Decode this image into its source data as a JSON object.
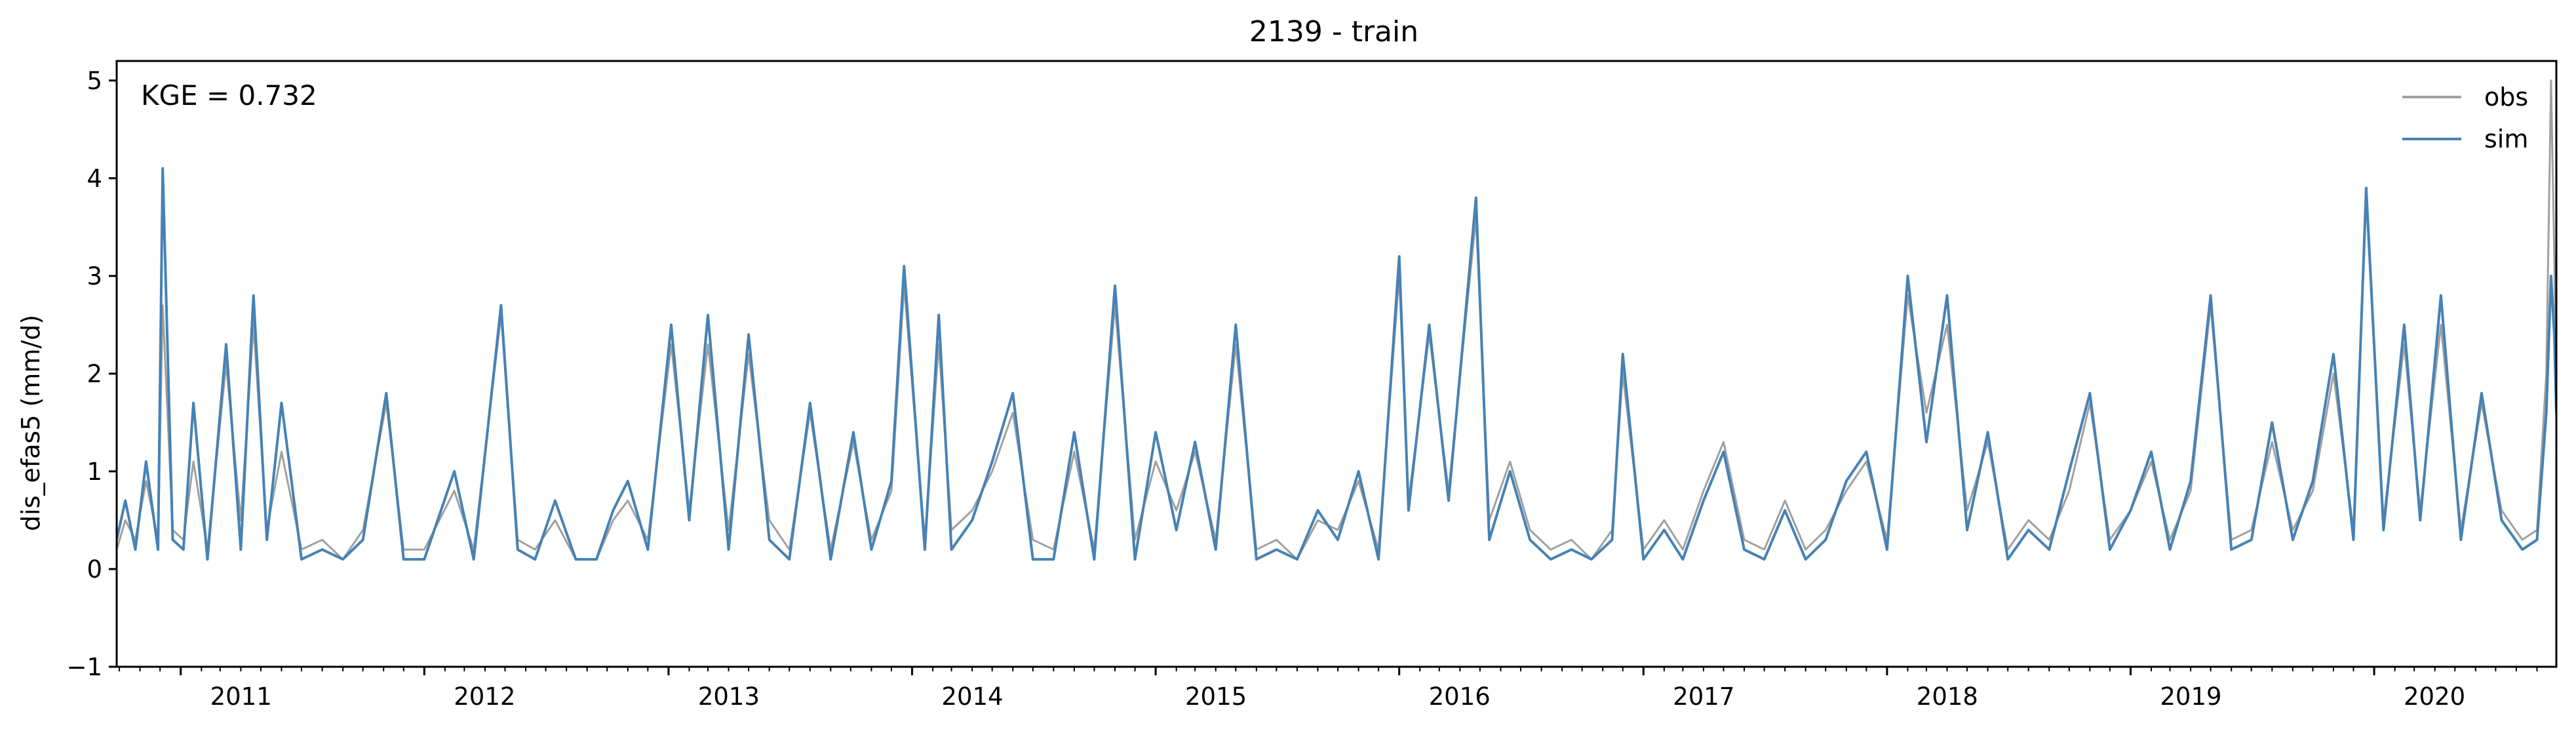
{
  "chart_data": {
    "type": "line",
    "title": "2139 - train",
    "ylabel": "dis_efas5 (mm/d)",
    "xlabel": "",
    "annotation": "KGE = 0.732",
    "xlim": [
      "2010-09-27",
      "2020-09-30"
    ],
    "ylim": [
      -1,
      5.2
    ],
    "yticks": [
      -1,
      0,
      1,
      2,
      3,
      4,
      5
    ],
    "ytick_labels": [
      "−1",
      "0",
      "1",
      "2",
      "3",
      "4",
      "5"
    ],
    "xticks": [
      "2011-01-01",
      "2012-01-01",
      "2013-01-01",
      "2014-01-01",
      "2015-01-01",
      "2016-01-01",
      "2017-01-01",
      "2018-01-01",
      "2019-01-01",
      "2020-01-01"
    ],
    "xtick_labels": [
      "2011",
      "2012",
      "2013",
      "2014",
      "2015",
      "2016",
      "2017",
      "2018",
      "2019",
      "2020"
    ],
    "grid": false,
    "legend_position": "top-right",
    "colors": {
      "obs": "#a0a0a0",
      "sim": "#4682b4"
    },
    "series": [
      {
        "name": "obs",
        "x": [
          "2010-09-27",
          "2010-10-10",
          "2010-10-25",
          "2010-11-10",
          "2010-11-28",
          "2010-12-05",
          "2010-12-20",
          "2011-01-05",
          "2011-01-20",
          "2011-02-10",
          "2011-03-10",
          "2011-04-01",
          "2011-04-20",
          "2011-05-10",
          "2011-06-01",
          "2011-07-01",
          "2011-08-01",
          "2011-09-01",
          "2011-10-01",
          "2011-11-05",
          "2011-12-01",
          "2012-01-01",
          "2012-02-15",
          "2012-03-15",
          "2012-04-25",
          "2012-05-20",
          "2012-06-15",
          "2012-07-15",
          "2012-08-15",
          "2012-09-15",
          "2012-10-10",
          "2012-11-01",
          "2012-12-01",
          "2013-01-05",
          "2013-02-01",
          "2013-03-01",
          "2013-04-01",
          "2013-05-01",
          "2013-06-01",
          "2013-07-01",
          "2013-08-01",
          "2013-09-01",
          "2013-10-05",
          "2013-11-01",
          "2013-12-01",
          "2013-12-20",
          "2014-01-20",
          "2014-02-10",
          "2014-03-01",
          "2014-04-01",
          "2014-05-01",
          "2014-06-01",
          "2014-07-01",
          "2014-08-01",
          "2014-09-01",
          "2014-10-01",
          "2014-11-01",
          "2014-12-01",
          "2015-01-01",
          "2015-02-01",
          "2015-03-01",
          "2015-04-01",
          "2015-05-01",
          "2015-06-01",
          "2015-07-01",
          "2015-08-01",
          "2015-09-01",
          "2015-10-01",
          "2015-11-01",
          "2015-12-01",
          "2016-01-01",
          "2016-01-15",
          "2016-02-15",
          "2016-03-15",
          "2016-04-25",
          "2016-05-15",
          "2016-06-15",
          "2016-07-15",
          "2016-08-15",
          "2016-09-15",
          "2016-10-15",
          "2016-11-15",
          "2016-12-01",
          "2017-01-01",
          "2017-02-01",
          "2017-03-01",
          "2017-04-01",
          "2017-05-01",
          "2017-06-01",
          "2017-07-01",
          "2017-08-01",
          "2017-09-01",
          "2017-10-01",
          "2017-11-01",
          "2017-12-01",
          "2018-01-01",
          "2018-02-01",
          "2018-03-01",
          "2018-04-01",
          "2018-05-01",
          "2018-06-01",
          "2018-07-01",
          "2018-08-01",
          "2018-09-01",
          "2018-10-01",
          "2018-11-01",
          "2018-12-01",
          "2019-01-01",
          "2019-02-01",
          "2019-03-01",
          "2019-04-01",
          "2019-05-01",
          "2019-06-01",
          "2019-07-01",
          "2019-08-01",
          "2019-09-01",
          "2019-10-01",
          "2019-11-01",
          "2019-12-01",
          "2019-12-20",
          "2020-01-15",
          "2020-02-15",
          "2020-03-10",
          "2020-04-10",
          "2020-05-10",
          "2020-06-10",
          "2020-07-10",
          "2020-08-10",
          "2020-09-01",
          "2020-09-15",
          "2020-09-22",
          "2020-09-27",
          "2020-09-30"
        ],
        "y": [
          0.2,
          0.5,
          0.3,
          0.9,
          0.3,
          2.7,
          0.4,
          0.3,
          1.1,
          0.2,
          2.1,
          0.5,
          2.5,
          0.4,
          1.2,
          0.2,
          0.3,
          0.1,
          0.4,
          1.7,
          0.2,
          0.2,
          0.8,
          0.2,
          2.6,
          0.3,
          0.2,
          0.5,
          0.1,
          0.1,
          0.5,
          0.7,
          0.3,
          2.3,
          0.6,
          2.3,
          0.4,
          2.2,
          0.5,
          0.2,
          1.6,
          0.2,
          1.3,
          0.3,
          0.8,
          2.9,
          0.3,
          2.3,
          0.4,
          0.6,
          1.0,
          1.6,
          0.3,
          0.2,
          1.2,
          0.2,
          2.7,
          0.3,
          1.1,
          0.6,
          1.2,
          0.3,
          2.3,
          0.2,
          0.3,
          0.1,
          0.5,
          0.4,
          0.9,
          0.2,
          3.0,
          0.7,
          2.4,
          0.8,
          3.6,
          0.5,
          1.1,
          0.4,
          0.2,
          0.3,
          0.1,
          0.4,
          2.0,
          0.2,
          0.5,
          0.2,
          0.8,
          1.3,
          0.3,
          0.2,
          0.7,
          0.2,
          0.4,
          0.8,
          1.1,
          0.3,
          2.8,
          1.6,
          2.5,
          0.6,
          1.3,
          0.2,
          0.5,
          0.3,
          0.8,
          1.7,
          0.3,
          0.6,
          1.1,
          0.3,
          0.8,
          2.7,
          0.3,
          0.4,
          1.3,
          0.4,
          0.8,
          2.0,
          0.4,
          3.8,
          0.5,
          2.3,
          0.6,
          2.5,
          0.4,
          1.7,
          0.6,
          0.3,
          0.4,
          2.0,
          5.0,
          3.2,
          1.8
        ]
      },
      {
        "name": "sim",
        "x": [
          "2010-09-27",
          "2010-10-10",
          "2010-10-25",
          "2010-11-10",
          "2010-11-28",
          "2010-12-05",
          "2010-12-20",
          "2011-01-05",
          "2011-01-20",
          "2011-02-10",
          "2011-03-10",
          "2011-04-01",
          "2011-04-20",
          "2011-05-10",
          "2011-06-01",
          "2011-07-01",
          "2011-08-01",
          "2011-09-01",
          "2011-10-01",
          "2011-11-05",
          "2011-12-01",
          "2012-01-01",
          "2012-02-15",
          "2012-03-15",
          "2012-04-25",
          "2012-05-20",
          "2012-06-15",
          "2012-07-15",
          "2012-08-15",
          "2012-09-15",
          "2012-10-10",
          "2012-11-01",
          "2012-12-01",
          "2013-01-05",
          "2013-02-01",
          "2013-03-01",
          "2013-04-01",
          "2013-05-01",
          "2013-06-01",
          "2013-07-01",
          "2013-08-01",
          "2013-09-01",
          "2013-10-05",
          "2013-11-01",
          "2013-12-01",
          "2013-12-20",
          "2014-01-20",
          "2014-02-10",
          "2014-03-01",
          "2014-04-01",
          "2014-05-01",
          "2014-06-01",
          "2014-07-01",
          "2014-08-01",
          "2014-09-01",
          "2014-10-01",
          "2014-11-01",
          "2014-12-01",
          "2015-01-01",
          "2015-02-01",
          "2015-03-01",
          "2015-04-01",
          "2015-05-01",
          "2015-06-01",
          "2015-07-01",
          "2015-08-01",
          "2015-09-01",
          "2015-10-01",
          "2015-11-01",
          "2015-12-01",
          "2016-01-01",
          "2016-01-15",
          "2016-02-15",
          "2016-03-15",
          "2016-04-25",
          "2016-05-15",
          "2016-06-15",
          "2016-07-15",
          "2016-08-15",
          "2016-09-15",
          "2016-10-15",
          "2016-11-15",
          "2016-12-01",
          "2017-01-01",
          "2017-02-01",
          "2017-03-01",
          "2017-04-01",
          "2017-05-01",
          "2017-06-01",
          "2017-07-01",
          "2017-08-01",
          "2017-09-01",
          "2017-10-01",
          "2017-11-01",
          "2017-12-01",
          "2018-01-01",
          "2018-02-01",
          "2018-03-01",
          "2018-04-01",
          "2018-05-01",
          "2018-06-01",
          "2018-07-01",
          "2018-08-01",
          "2018-09-01",
          "2018-10-01",
          "2018-11-01",
          "2018-12-01",
          "2019-01-01",
          "2019-02-01",
          "2019-03-01",
          "2019-04-01",
          "2019-05-01",
          "2019-06-01",
          "2019-07-01",
          "2019-08-01",
          "2019-09-01",
          "2019-10-01",
          "2019-11-01",
          "2019-12-01",
          "2019-12-20",
          "2020-01-15",
          "2020-02-15",
          "2020-03-10",
          "2020-04-10",
          "2020-05-10",
          "2020-06-10",
          "2020-07-10",
          "2020-08-10",
          "2020-09-01",
          "2020-09-15",
          "2020-09-22",
          "2020-09-27",
          "2020-09-30"
        ],
        "y": [
          0.3,
          0.7,
          0.2,
          1.1,
          0.2,
          4.1,
          0.3,
          0.2,
          1.7,
          0.1,
          2.3,
          0.2,
          2.8,
          0.3,
          1.7,
          0.1,
          0.2,
          0.1,
          0.3,
          1.8,
          0.1,
          0.1,
          1.0,
          0.1,
          2.7,
          0.2,
          0.1,
          0.7,
          0.1,
          0.1,
          0.6,
          0.9,
          0.2,
          2.5,
          0.5,
          2.6,
          0.2,
          2.4,
          0.3,
          0.1,
          1.7,
          0.1,
          1.4,
          0.2,
          0.9,
          3.1,
          0.2,
          2.6,
          0.2,
          0.5,
          1.1,
          1.8,
          0.1,
          0.1,
          1.4,
          0.1,
          2.9,
          0.1,
          1.4,
          0.4,
          1.3,
          0.2,
          2.5,
          0.1,
          0.2,
          0.1,
          0.6,
          0.3,
          1.0,
          0.1,
          3.2,
          0.6,
          2.5,
          0.7,
          3.8,
          0.3,
          1.0,
          0.3,
          0.1,
          0.2,
          0.1,
          0.3,
          2.2,
          0.1,
          0.4,
          0.1,
          0.7,
          1.2,
          0.2,
          0.1,
          0.6,
          0.1,
          0.3,
          0.9,
          1.2,
          0.2,
          3.0,
          1.3,
          2.8,
          0.4,
          1.4,
          0.1,
          0.4,
          0.2,
          1.0,
          1.8,
          0.2,
          0.6,
          1.2,
          0.2,
          0.9,
          2.8,
          0.2,
          0.3,
          1.5,
          0.3,
          0.9,
          2.2,
          0.3,
          3.9,
          0.4,
          2.5,
          0.5,
          2.8,
          0.3,
          1.8,
          0.5,
          0.2,
          0.3,
          1.6,
          3.0,
          2.4,
          1.6
        ]
      }
    ]
  }
}
